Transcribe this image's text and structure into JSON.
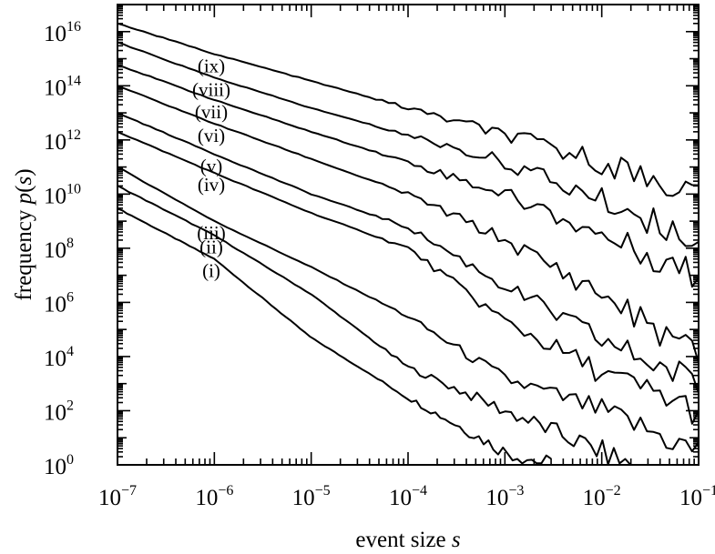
{
  "chart_data": {
    "type": "line",
    "xlabel": {
      "prefix": "event size ",
      "italic": "s"
    },
    "ylabel": {
      "prefix": "frequency ",
      "italic_p": "p",
      "open": "(",
      "italic_s": "s",
      "close": ")"
    },
    "xscale": "log",
    "yscale": "log",
    "xlim": [
      1e-07,
      0.1
    ],
    "ylim": [
      1,
      1e+17
    ],
    "grid": false,
    "legend": "none",
    "x_ticks": [
      {
        "base": "10",
        "exp": "−7"
      },
      {
        "base": "10",
        "exp": "−6"
      },
      {
        "base": "10",
        "exp": "−5"
      },
      {
        "base": "10",
        "exp": "−4"
      },
      {
        "base": "10",
        "exp": "−3"
      },
      {
        "base": "10",
        "exp": "−2"
      },
      {
        "base": "10",
        "exp": "−1"
      }
    ],
    "y_ticks": [
      {
        "base": "10",
        "exp": "0"
      },
      {
        "base": "10",
        "exp": "2"
      },
      {
        "base": "10",
        "exp": "4"
      },
      {
        "base": "10",
        "exp": "6"
      },
      {
        "base": "10",
        "exp": "8"
      },
      {
        "base": "10",
        "exp": "10"
      },
      {
        "base": "10",
        "exp": "12"
      },
      {
        "base": "10",
        "exp": "14"
      },
      {
        "base": "10",
        "exp": "16"
      }
    ],
    "series": [
      {
        "name": "(i)",
        "x": [
          1e-07,
          1e-06,
          1e-05,
          0.0001,
          0.001,
          0.003
        ],
        "y": [
          3000000000.0,
          40000000.0,
          50000.0,
          300.0,
          3,
          1
        ]
      },
      {
        "name": "(ii)",
        "x": [
          1e-07,
          1e-06,
          1e-05,
          0.0001,
          0.001,
          0.01,
          0.02
        ],
        "y": [
          20000000000.0,
          300000000.0,
          2000000.0,
          4000.0,
          100.0,
          3,
          1
        ]
      },
      {
        "name": "(iii)",
        "x": [
          1e-07,
          1e-06,
          1e-05,
          0.0001,
          0.001,
          0.01,
          0.1
        ],
        "y": [
          100000000000.0,
          1000000000.0,
          20000000.0,
          300000.0,
          1500.0,
          100.0,
          3
        ]
      },
      {
        "name": "(iv)",
        "x": [
          1e-07,
          1e-06,
          1e-05,
          0.0001,
          0.001,
          0.01,
          0.1
        ],
        "y": [
          2000000000000.0,
          60000000000.0,
          2000000000.0,
          100000000.0,
          200000.0,
          2500.0,
          100.0
        ]
      },
      {
        "name": "(v)",
        "x": [
          1e-07,
          1e-06,
          1e-05,
          0.0001,
          0.001,
          0.01,
          0.1
        ],
        "y": [
          10000000000000.0,
          300000000000.0,
          10000000000.0,
          600000000.0,
          4000000.0,
          40000.0,
          1000.0
        ]
      },
      {
        "name": "(vi)",
        "x": [
          1e-07,
          1e-06,
          1e-05,
          0.0001,
          0.001,
          0.01,
          0.1
        ],
        "y": [
          100000000000000.0,
          4000000000000.0,
          200000000000.0,
          10000000000.0,
          200000000.0,
          2000000.0,
          10000.0
        ]
      },
      {
        "name": "(vii)",
        "x": [
          1e-07,
          1e-06,
          1e-05,
          0.0001,
          0.001,
          0.01,
          0.1
        ],
        "y": [
          600000000000000.0,
          30000000000000.0,
          2000000000000.0,
          150000000000.0,
          10000000000.0,
          300000000.0,
          10000000.0
        ]
      },
      {
        "name": "(viii)",
        "x": [
          1e-07,
          1e-06,
          1e-05,
          0.0001,
          0.001,
          0.01,
          0.1
        ],
        "y": [
          4000000000000000.0,
          200000000000000.0,
          15000000000000.0,
          1500000000000.0,
          150000000000.0,
          6000000000.0,
          200000000.0
        ]
      },
      {
        "name": "(ix)",
        "x": [
          1e-07,
          1e-06,
          1e-05,
          0.0001,
          0.001,
          0.01,
          0.1
        ],
        "y": [
          2e+16,
          1500000000000000.0,
          150000000000000.0,
          15000000000000.0,
          1500000000000.0,
          150000000000.0,
          10000000000.0
        ]
      }
    ]
  }
}
